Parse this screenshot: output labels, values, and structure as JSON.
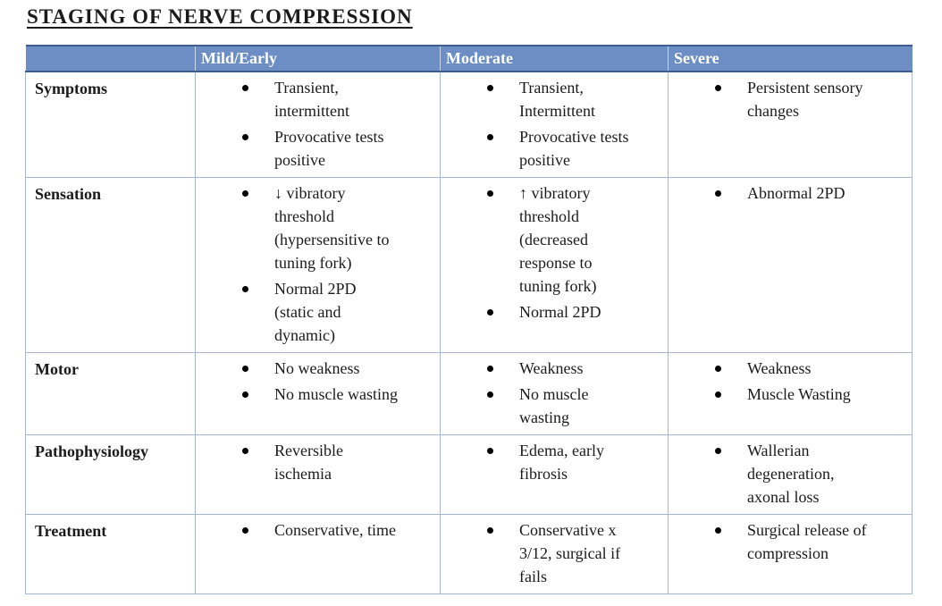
{
  "page": {
    "title": "STAGING OF NERVE COMPRESSION"
  },
  "table": {
    "column_headers": [
      "Mild/Early",
      "Moderate",
      "Severe"
    ],
    "rows": [
      {
        "label": "Symptoms",
        "cells": [
          [
            "Transient,\nintermittent",
            "Provocative tests\npositive"
          ],
          [
            "Transient,\nIntermittent",
            "Provocative tests\npositive"
          ],
          [
            "Persistent sensory\nchanges"
          ]
        ]
      },
      {
        "label": "Sensation",
        "cells": [
          [
            "↓ vibratory\nthreshold\n(hypersensitive to\ntuning fork)",
            "Normal 2PD\n(static and\ndynamic)"
          ],
          [
            "↑ vibratory\nthreshold\n(decreased\nresponse to\ntuning fork)",
            "Normal 2PD"
          ],
          [
            "Abnormal 2PD"
          ]
        ]
      },
      {
        "label": "Motor",
        "cells": [
          [
            "No weakness",
            "No muscle wasting"
          ],
          [
            "Weakness",
            "No muscle\nwasting"
          ],
          [
            "Weakness",
            "Muscle Wasting"
          ]
        ]
      },
      {
        "label": "Pathophysiology",
        "cells": [
          [
            "Reversible\nischemia"
          ],
          [
            "Edema, early\nfibrosis"
          ],
          [
            "Wallerian\ndegeneration,\naxonal loss"
          ]
        ]
      },
      {
        "label": "Treatment",
        "cells": [
          [
            "Conservative, time"
          ],
          [
            "Conservative x\n3/12, surgical if\nfails"
          ],
          [
            "Surgical release of\ncompression"
          ]
        ]
      }
    ]
  },
  "colors": {
    "header_fill": "#6D8EC4",
    "header_border": "#3D5E92",
    "grid_border": "#A5B7D1",
    "text": "#1b1b1b"
  }
}
